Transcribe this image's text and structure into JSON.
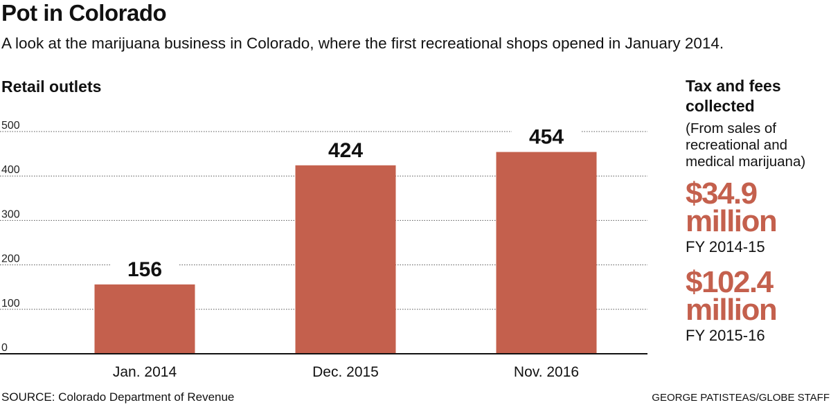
{
  "header": {
    "title": "Pot in Colorado",
    "subtitle": "A look at the marijuana business in Colorado, where the first recreational shops opened in January 2014."
  },
  "chart_data": {
    "type": "bar",
    "title": "Retail outlets",
    "categories": [
      "Jan. 2014",
      "Dec. 2015",
      "Nov. 2016"
    ],
    "values": [
      156,
      424,
      454
    ],
    "data_labels": [
      "156",
      "424",
      "454"
    ],
    "ylim": [
      0,
      500
    ],
    "yticks": [
      0,
      100,
      200,
      300,
      400,
      500
    ],
    "ytick_labels": [
      "0",
      "100",
      "200",
      "300",
      "400",
      "500"
    ],
    "xlabel": "",
    "ylabel": "",
    "grid": true,
    "bar_color": "#c4604d"
  },
  "sidebar": {
    "title": "Tax and fees collected",
    "note": "(From sales of recreational and medical marijuana)",
    "stats": [
      {
        "amount": "$34.9",
        "unit": "million",
        "period": "FY 2014-15"
      },
      {
        "amount": "$102.4",
        "unit": "million",
        "period": "FY 2015-16"
      }
    ],
    "accent_color": "#c4604d"
  },
  "footer": {
    "source": "SOURCE: Colorado Department of Revenue",
    "credit": "GEORGE PATISTEAS/GLOBE STAFF"
  }
}
